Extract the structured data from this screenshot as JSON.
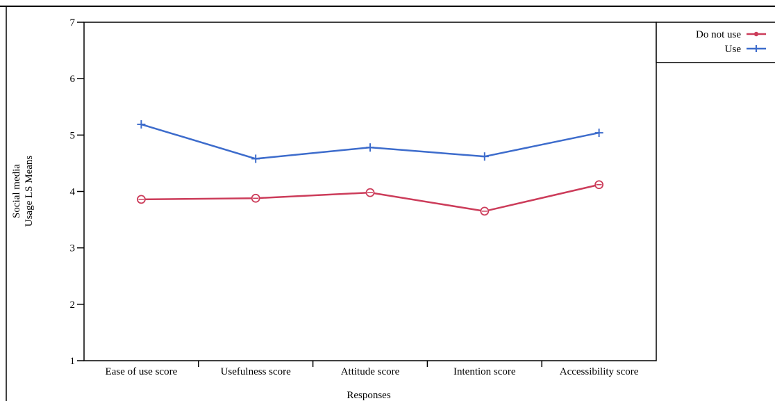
{
  "chart_data": {
    "type": "line",
    "categories": [
      "Ease of use score",
      "Usefulness score",
      "Attitude score",
      "Intention score",
      "Accessibility score"
    ],
    "series": [
      {
        "name": "Do not use",
        "values": [
          3.86,
          3.88,
          3.98,
          3.65,
          4.12
        ],
        "color": "#cc3c5a",
        "marker": "circle"
      },
      {
        "name": "Use",
        "values": [
          5.19,
          4.58,
          4.78,
          4.62,
          5.04
        ],
        "color": "#3d6ccc",
        "marker": "plus"
      }
    ],
    "ylabel_line1": "Social media",
    "ylabel_line2": "Usage  LS Means",
    "xlabel": "Responses",
    "ylim": [
      1,
      7
    ],
    "yticks": [
      1,
      2,
      3,
      4,
      5,
      6,
      7
    ],
    "grid": false,
    "legend_position": "top-right"
  }
}
